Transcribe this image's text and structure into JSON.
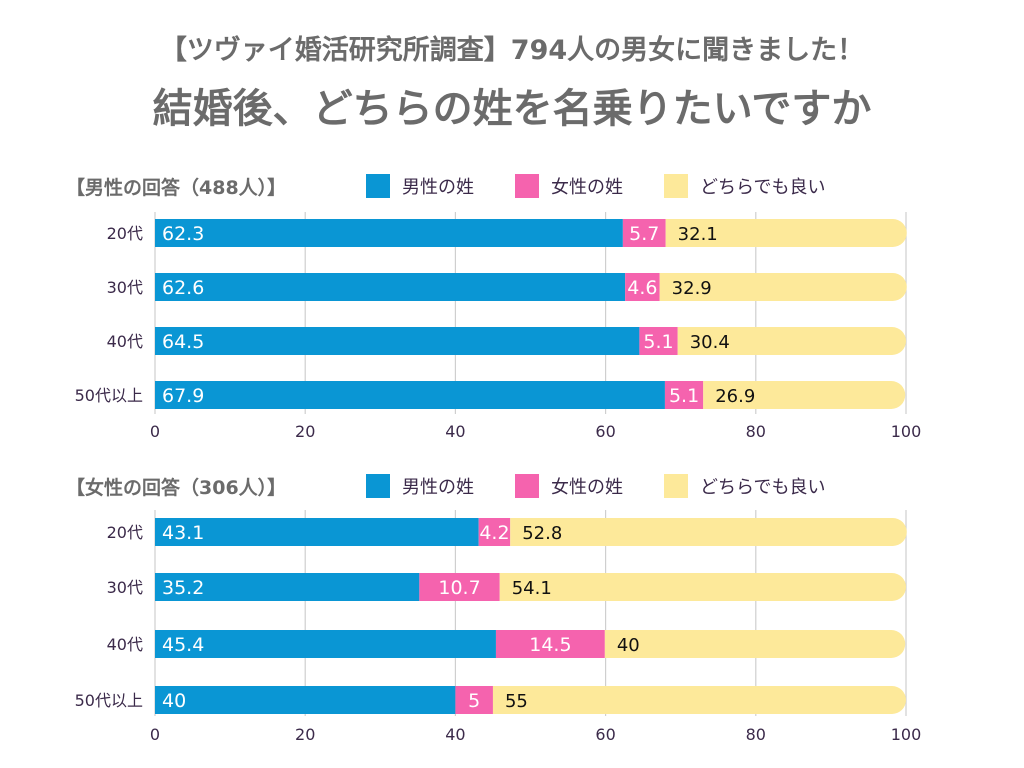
{
  "header": {
    "title_line1": "【ツヴァイ婚活研究所調査】794人の男女に聞きました！",
    "title_line2": "結婚後、どちらの姓を名乗りたいですか"
  },
  "colors": {
    "male_surname": "#0a96d4",
    "female_surname": "#f563ae",
    "either": "#fde99a",
    "grid": "#cfcfcf",
    "title_text": "#6b6b6b",
    "label_text": "#3b2a4a"
  },
  "chart_data": [
    {
      "type": "bar",
      "orientation": "horizontal",
      "stacked": true,
      "title": "【男性の回答（488人）】",
      "categories": [
        "20代",
        "30代",
        "40代",
        "50代以上"
      ],
      "series": [
        {
          "name": "男性の姓",
          "values": [
            62.3,
            62.6,
            64.5,
            67.9
          ]
        },
        {
          "name": "女性の姓",
          "values": [
            5.7,
            4.6,
            5.1,
            5.1
          ]
        },
        {
          "name": "どちらでも良い",
          "values": [
            32.1,
            32.9,
            30.4,
            26.9
          ]
        }
      ],
      "xlim": [
        0,
        100
      ],
      "xticks": [
        "0",
        "20",
        "40",
        "60",
        "80",
        "100"
      ],
      "grid": true,
      "legend": "top"
    },
    {
      "type": "bar",
      "orientation": "horizontal",
      "stacked": true,
      "title": "【女性の回答（306人）】",
      "categories": [
        "20代",
        "30代",
        "40代",
        "50代以上"
      ],
      "series": [
        {
          "name": "男性の姓",
          "values": [
            43.1,
            35.2,
            45.4,
            40
          ]
        },
        {
          "name": "女性の姓",
          "values": [
            4.2,
            10.7,
            14.5,
            5
          ]
        },
        {
          "name": "どちらでも良い",
          "values": [
            52.8,
            54.1,
            40,
            55
          ]
        }
      ],
      "xlim": [
        0,
        100
      ],
      "xticks": [
        "0",
        "20",
        "40",
        "60",
        "80",
        "100"
      ],
      "grid": true,
      "legend": "top"
    }
  ]
}
